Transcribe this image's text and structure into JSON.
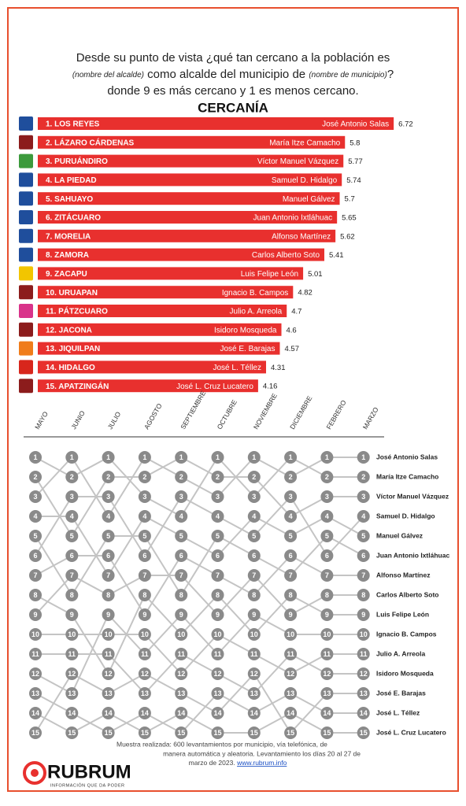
{
  "header": {
    "q1": "Desde su punto de vista ¿qué tan cercano a la población es",
    "q2a": "(nombre del alcalde)",
    "q2b": " como alcalde del municipio de ",
    "q2c": "(nombre de municipio)",
    "q2d": "?",
    "q3": "donde 9 es más cercano y 1 es menos cercano."
  },
  "chart_data": [
    {
      "type": "hbar",
      "title": "CERCANÍA",
      "color": "#e8302e",
      "xlim": [
        0,
        7
      ],
      "categories": [
        "1. LOS REYES",
        "2. LÁZARO CÁRDENAS",
        "3. PURUÁNDIRO",
        "4. LA PIEDAD",
        "5. SAHUAYO",
        "6. ZITÁCUARO",
        "7. MORELIA",
        "8. ZAMORA",
        "9. ZACAPU",
        "10. URUAPAN",
        "11. PÁTZCUARO",
        "12. JACONA",
        "13. JIQUILPAN",
        "14. HIDALGO",
        "15. APATZINGÁN"
      ],
      "names": [
        "José Antonio Salas",
        "María Itze Camacho",
        "Víctor Manuel Vázquez",
        "Samuel D. Hidalgo",
        "Manuel Gálvez",
        "Juan Antonio Ixtláhuac",
        "Alfonso Martínez",
        "Carlos Alberto Soto",
        "Luis Felipe León",
        "Ignacio B. Campos",
        "Julio A. Arreola",
        "Isidoro Mosqueda",
        "José E. Barajas",
        "José L. Téllez",
        "José L. Cruz Lucatero"
      ],
      "values": [
        6.72,
        5.8,
        5.77,
        5.74,
        5.7,
        5.65,
        5.62,
        5.41,
        5.01,
        4.82,
        4.7,
        4.6,
        4.57,
        4.31,
        4.16
      ],
      "party_colors": [
        "#1f4e9c",
        "#8c1c1c",
        "#3c9a3c",
        "#1f4e9c",
        "#1f4e9c",
        "#1f4e9c",
        "#1f4e9c",
        "#1f4e9c",
        "#f2c500",
        "#8c1c1c",
        "#d9338a",
        "#8c1c1c",
        "#f07c1a",
        "#d8261c",
        "#8c1c1c"
      ]
    },
    {
      "type": "bump",
      "categories": [
        "MAYO",
        "JUNIO",
        "JULIO",
        "AGOSTO",
        "SEPTIEMBRE",
        "OCTUBRE",
        "NOVIEMBRE",
        "DICIEMBRE",
        "FEBRERO",
        "MARZO"
      ],
      "ylim": [
        15,
        1
      ],
      "yticks": [
        1,
        2,
        3,
        4,
        5,
        6,
        7,
        8,
        9,
        10,
        11,
        12,
        13,
        14,
        15
      ],
      "line_color": "#c4c4c4",
      "marker_color": "#8a8a8a",
      "series": [
        {
          "name": "José Antonio Salas",
          "values": [
            3,
            1,
            4,
            1,
            2,
            3,
            1,
            2,
            1,
            1
          ]
        },
        {
          "name": "María Itze Camacho",
          "values": [
            1,
            2,
            1,
            3,
            4,
            1,
            3,
            1,
            2,
            2
          ]
        },
        {
          "name": "Víctor Manuel Vázquez",
          "values": [
            2,
            5,
            2,
            2,
            1,
            2,
            2,
            4,
            3,
            3
          ]
        },
        {
          "name": "Samuel D. Hidalgo",
          "values": [
            6,
            3,
            3,
            6,
            3,
            4,
            5,
            3,
            6,
            4
          ]
        },
        {
          "name": "Manuel Gálvez",
          "values": [
            4,
            4,
            7,
            4,
            5,
            6,
            4,
            5,
            4,
            5
          ]
        },
        {
          "name": "Juan Antonio Ixtláhuac",
          "values": [
            5,
            8,
            5,
            5,
            8,
            5,
            6,
            7,
            5,
            6
          ]
        },
        {
          "name": "Alfonso Martínez",
          "values": [
            7,
            6,
            6,
            9,
            6,
            7,
            8,
            6,
            7,
            7
          ]
        },
        {
          "name": "Carlos Alberto Soto",
          "values": [
            9,
            7,
            8,
            7,
            7,
            9,
            7,
            9,
            8,
            8
          ]
        },
        {
          "name": "Luis Felipe León",
          "values": [
            8,
            9,
            12,
            8,
            10,
            8,
            10,
            8,
            9,
            9
          ]
        },
        {
          "name": "Ignacio B. Campos",
          "values": [
            12,
            13,
            9,
            11,
            9,
            11,
            9,
            10,
            10,
            10
          ]
        },
        {
          "name": "Julio A. Arreola",
          "values": [
            10,
            10,
            10,
            10,
            12,
            10,
            11,
            12,
            11,
            11
          ]
        },
        {
          "name": "Isidoro Mosqueda",
          "values": [
            11,
            11,
            11,
            13,
            11,
            12,
            13,
            11,
            12,
            12
          ]
        },
        {
          "name": "José E. Barajas",
          "values": [
            15,
            12,
            13,
            12,
            13,
            14,
            12,
            15,
            13,
            13
          ]
        },
        {
          "name": "José L. Téllez",
          "values": [
            13,
            14,
            15,
            14,
            15,
            13,
            14,
            13,
            14,
            14
          ]
        },
        {
          "name": "José L. Cruz Lucatero",
          "values": [
            14,
            15,
            14,
            15,
            14,
            15,
            15,
            14,
            15,
            15
          ]
        }
      ]
    }
  ],
  "footer": {
    "l1": "Muestra realizada: 600 levantamientos por municipio, vía telefónica, de",
    "l2": "manera automática y aleatoria. Levantamiento los días 20 al 27 de",
    "l3": "marzo de 2023. ",
    "link": "www.rubrum.info"
  },
  "logo": {
    "name": "RUBRUM",
    "tagline": "INFORMACIÓN QUE DA PODER"
  }
}
